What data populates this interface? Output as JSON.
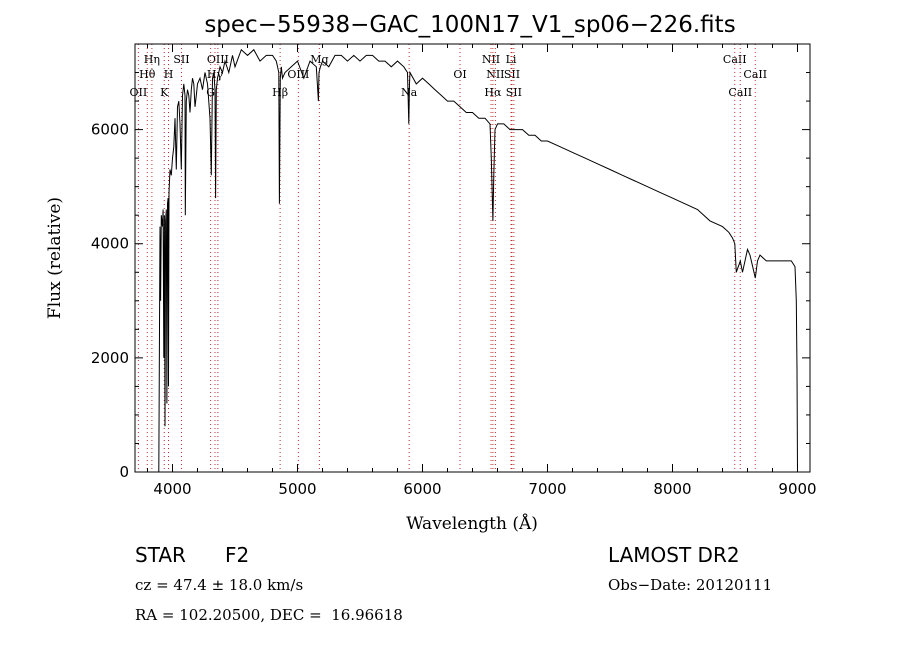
{
  "chart_data": {
    "type": "line",
    "title": "spec−55938−GAC_100N17_V1_sp06−226.fits",
    "xlabel": "Wavelength (Å)",
    "ylabel": "Flux (relative)",
    "xlim": [
      3700,
      9100
    ],
    "ylim": [
      0,
      7500
    ],
    "x_ticks": [
      4000,
      5000,
      6000,
      7000,
      8000,
      9000
    ],
    "y_ticks": [
      0,
      2000,
      4000,
      6000
    ],
    "series": [
      {
        "x": [
          3880,
          3890,
          3900,
          3905,
          3910,
          3920,
          3925,
          3930,
          3935,
          3940,
          3945,
          3950,
          3955,
          3960,
          3965,
          3968,
          3972,
          3980,
          3990,
          4000,
          4010,
          4020,
          4030,
          4040,
          4050,
          4060,
          4070,
          4080,
          4090,
          4100,
          4102,
          4110,
          4120,
          4130,
          4140,
          4150,
          4160,
          4170,
          4180,
          4190,
          4200,
          4220,
          4240,
          4260,
          4280,
          4300,
          4310,
          4320,
          4330,
          4340,
          4345,
          4350,
          4360,
          4380,
          4400,
          4420,
          4450,
          4480,
          4500,
          4550,
          4600,
          4650,
          4700,
          4750,
          4800,
          4830,
          4850,
          4855,
          4862,
          4870,
          4880,
          4900,
          4950,
          5000,
          5050,
          5100,
          5150,
          5167,
          5172,
          5183,
          5200,
          5250,
          5300,
          5350,
          5400,
          5450,
          5500,
          5550,
          5600,
          5650,
          5700,
          5750,
          5800,
          5850,
          5880,
          5890,
          5896,
          5900,
          5950,
          6000,
          6050,
          6100,
          6150,
          6200,
          6250,
          6300,
          6350,
          6400,
          6450,
          6500,
          6540,
          6550,
          6563,
          6570,
          6580,
          6600,
          6650,
          6700,
          6750,
          6800,
          6850,
          6900,
          6950,
          7000,
          7100,
          7200,
          7300,
          7400,
          7500,
          7600,
          7700,
          7800,
          7900,
          8000,
          8100,
          8200,
          8300,
          8400,
          8450,
          8480,
          8498,
          8510,
          8542,
          8560,
          8600,
          8620,
          8662,
          8680,
          8700,
          8750,
          8800,
          8850,
          8900,
          8950,
          8980,
          8990,
          8996,
          9000
        ],
        "y": [
          0,
          0,
          4300,
          3000,
          4500,
          4300,
          4600,
          2000,
          4500,
          800,
          4400,
          4600,
          1200,
          4700,
          4800,
          1500,
          4900,
          5300,
          5200,
          5500,
          5700,
          6200,
          5300,
          6400,
          6500,
          6100,
          5300,
          6600,
          6800,
          6600,
          4500,
          6500,
          6700,
          6600,
          6300,
          6700,
          6900,
          6800,
          6400,
          6600,
          6800,
          6900,
          6700,
          7000,
          6800,
          6200,
          5200,
          6900,
          7000,
          6700,
          4800,
          6700,
          6900,
          7100,
          7000,
          7200,
          7000,
          7300,
          7100,
          7400,
          7300,
          7400,
          7200,
          7300,
          7300,
          7200,
          7000,
          4700,
          6900,
          7100,
          6900,
          7000,
          7100,
          7200,
          6900,
          7200,
          7100,
          6500,
          7000,
          7100,
          7200,
          7100,
          7300,
          7300,
          7200,
          7300,
          7200,
          7300,
          7300,
          7200,
          7200,
          7100,
          7200,
          7100,
          7000,
          6100,
          6800,
          7000,
          6800,
          6900,
          6800,
          6700,
          6600,
          6500,
          6500,
          6400,
          6300,
          6300,
          6200,
          6200,
          6100,
          5500,
          4400,
          5200,
          6000,
          6100,
          6100,
          6000,
          6000,
          6000,
          5900,
          5900,
          5800,
          5800,
          5700,
          5600,
          5500,
          5400,
          5300,
          5200,
          5100,
          5000,
          4900,
          4800,
          4700,
          4600,
          4400,
          4300,
          4200,
          4100,
          4000,
          3500,
          3700,
          3500,
          3900,
          3800,
          3400,
          3700,
          3800,
          3700,
          3700,
          3700,
          3700,
          3700,
          3600,
          3000,
          1800,
          0
        ]
      }
    ],
    "line_markers": [
      {
        "name": "OII",
        "x": 3727,
        "row": 3
      },
      {
        "name": "Hθ",
        "x": 3798,
        "row": 2
      },
      {
        "name": "Hη",
        "x": 3835,
        "row": 1
      },
      {
        "name": "K",
        "x": 3934,
        "row": 3
      },
      {
        "name": "H",
        "x": 3968,
        "row": 2
      },
      {
        "name": "SII",
        "x": 4072,
        "row": 1
      },
      {
        "name": "OIII",
        "x": 4363,
        "row": 1
      },
      {
        "name": "Hγ",
        "x": 4340,
        "row": 2
      },
      {
        "name": "G",
        "x": 4305,
        "row": 3
      },
      {
        "name": "Hβ",
        "x": 4861,
        "row": 3
      },
      {
        "name": "OIII",
        "x": 5007,
        "row": 2
      },
      {
        "name": "Mg",
        "x": 5175,
        "row": 1
      },
      {
        "name": "Na",
        "x": 5893,
        "row": 3
      },
      {
        "name": "OI",
        "x": 6300,
        "row": 2
      },
      {
        "name": "NII",
        "x": 6548,
        "row": 1
      },
      {
        "name": "NII",
        "x": 6583,
        "row": 2
      },
      {
        "name": "Hα",
        "x": 6563,
        "row": 3
      },
      {
        "name": "Li",
        "x": 6708,
        "row": 1
      },
      {
        "name": "SII",
        "x": 6716,
        "row": 2
      },
      {
        "name": "SII",
        "x": 6731,
        "row": 3
      },
      {
        "name": "CaII",
        "x": 8498,
        "row": 1
      },
      {
        "name": "CaII",
        "x": 8542,
        "row": 3
      },
      {
        "name": "CaII",
        "x": 8662,
        "row": 2
      }
    ],
    "grid": false,
    "legend": "none"
  },
  "info": {
    "object_class": "STAR",
    "subclass": "F2",
    "survey": "LAMOST DR2",
    "redshift": "cz = 47.4 ± 18.0 km/s",
    "obs_date": "Obs−Date: 20120111",
    "coords": "RA = 102.20500, DEC =  16.96618"
  }
}
